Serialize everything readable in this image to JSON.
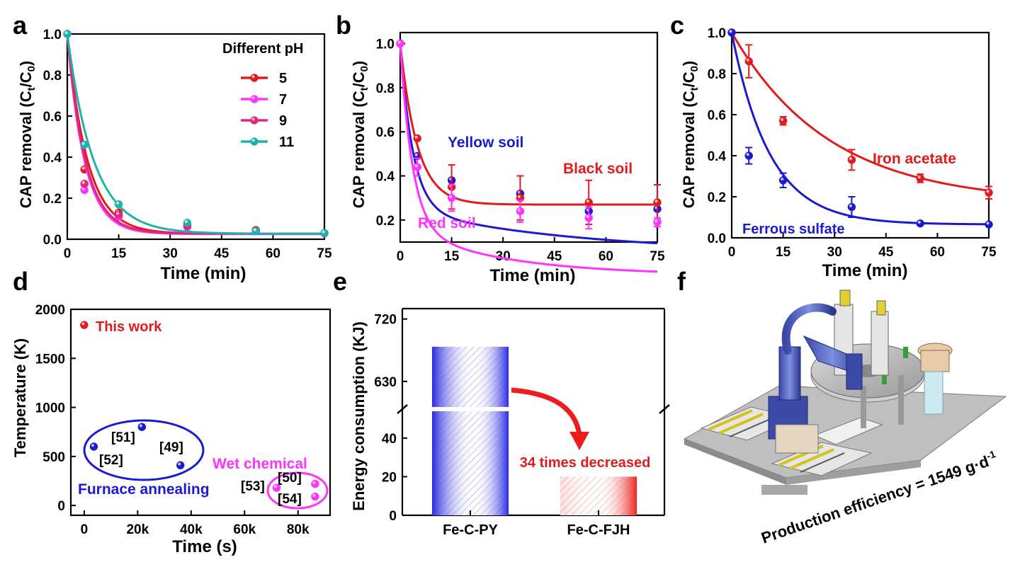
{
  "chart_data": [
    {
      "panel": "a",
      "type": "line",
      "xlabel": "Time (min)",
      "ylabel_main": "CAP removal (C",
      "ylabel_t": "t",
      "ylabel_mid": "/C",
      "ylabel_0": "0",
      "ylabel_end": ")",
      "xlim": [
        0,
        75
      ],
      "ylim": [
        0,
        1.0
      ],
      "xticks": [
        "0",
        "15",
        "30",
        "45",
        "60",
        "75"
      ],
      "xtick_values": [
        0,
        15,
        30,
        45,
        60,
        75
      ],
      "yticks": [
        "0.0",
        "0.2",
        "0.4",
        "0.6",
        "0.8",
        "1.0"
      ],
      "ytick_values": [
        0,
        0.2,
        0.4,
        0.6,
        0.8,
        1.0
      ],
      "legend_title": "Different pH",
      "x": [
        0,
        5,
        15,
        35,
        55,
        75
      ],
      "series": [
        {
          "name": "5",
          "color": "#e31a1c",
          "values": [
            1.0,
            0.34,
            0.13,
            0.07,
            0.045,
            0.03
          ],
          "k": 0.17
        },
        {
          "name": "7",
          "color": "#ff33ff",
          "values": [
            1.0,
            0.24,
            0.11,
            0.06,
            0.04,
            0.028
          ],
          "k": 0.2
        },
        {
          "name": "9",
          "color": "#e0287a",
          "values": [
            1.0,
            0.27,
            0.12,
            0.065,
            0.04,
            0.03
          ],
          "k": 0.19
        },
        {
          "name": "11",
          "color": "#20b2aa",
          "values": [
            1.0,
            0.46,
            0.17,
            0.08,
            0.04,
            0.03
          ],
          "k": 0.13
        }
      ]
    },
    {
      "panel": "b",
      "type": "line",
      "xlabel": "Time (min)",
      "ylabel_main": "CAP removal (C",
      "ylabel_t": "t",
      "ylabel_mid": "/C",
      "ylabel_0": "0",
      "ylabel_end": ")",
      "xlim": [
        0,
        75
      ],
      "ylim": [
        0.1,
        1.05
      ],
      "xticks": [
        "0",
        "15",
        "30",
        "45",
        "60",
        "75"
      ],
      "xtick_values": [
        0,
        15,
        30,
        45,
        60,
        75
      ],
      "yticks": [
        "0.2",
        "0.4",
        "0.6",
        "0.8",
        "1.0"
      ],
      "ytick_values": [
        0.2,
        0.4,
        0.6,
        0.8,
        1.0
      ],
      "x": [
        0,
        5,
        15,
        35,
        55,
        75
      ],
      "series": [
        {
          "name": "Yellow soil",
          "color": "#1a1ad0",
          "values": [
            1.0,
            0.49,
            0.38,
            0.32,
            0.24,
            0.25
          ],
          "errors": [
            0,
            0,
            0,
            0,
            0,
            0
          ],
          "fit": [
            0.25,
            0.75,
            0.27,
            0.2,
            0.02
          ]
        },
        {
          "name": "Black soil",
          "color": "#e31a1c",
          "values": [
            1.0,
            0.57,
            0.35,
            0.3,
            0.28,
            0.28
          ],
          "errors": [
            0,
            0,
            0.1,
            0.1,
            0.1,
            0.08
          ],
          "fit": [
            0.27,
            0.73,
            0.2,
            0.0,
            0.0
          ]
        },
        {
          "name": "Red soil",
          "color": "#ff33ff",
          "values": [
            1.0,
            0.44,
            0.3,
            0.24,
            0.21,
            0.19
          ],
          "errors": [
            0,
            0.04,
            0.06,
            0.05,
            0.05,
            0.02
          ],
          "fit": [
            0.17,
            0.83,
            0.28,
            0.22,
            0.035
          ]
        }
      ]
    },
    {
      "panel": "c",
      "type": "line",
      "xlabel": "Time (min)",
      "ylabel_main": "CAP removal (C",
      "ylabel_t": "t",
      "ylabel_mid": "/C",
      "ylabel_0": "0",
      "ylabel_end": ")",
      "xlim": [
        0,
        75
      ],
      "ylim": [
        0,
        1.0
      ],
      "xticks": [
        "0",
        "15",
        "30",
        "45",
        "60",
        "75"
      ],
      "xtick_values": [
        0,
        15,
        30,
        45,
        60,
        75
      ],
      "yticks": [
        "0.0",
        "0.2",
        "0.4",
        "0.6",
        "0.8",
        "1.0"
      ],
      "ytick_values": [
        0,
        0.2,
        0.4,
        0.6,
        0.8,
        1.0
      ],
      "x": [
        0,
        5,
        15,
        35,
        55,
        75
      ],
      "series": [
        {
          "name": "Iron acetate",
          "color": "#e31a1c",
          "values": [
            1.0,
            0.86,
            0.57,
            0.38,
            0.29,
            0.22
          ],
          "errors": [
            0,
            0.08,
            0.02,
            0.05,
            0.02,
            0.03
          ],
          "fit": [
            0.17,
            0.83,
            0.035
          ]
        },
        {
          "name": "Ferrous sulfate",
          "color": "#1a1ad0",
          "values": [
            1.0,
            0.4,
            0.28,
            0.15,
            0.07,
            0.065
          ],
          "errors": [
            0,
            0.04,
            0.035,
            0.05,
            0.0,
            0.0
          ],
          "fit": [
            0.065,
            0.935,
            0.09
          ]
        }
      ]
    },
    {
      "panel": "d",
      "type": "scatter",
      "xlabel": "Time (s)",
      "ylabel": "Temperature (K)",
      "xlim": [
        -5000,
        92000
      ],
      "ylim": [
        -100,
        2000
      ],
      "xticks": [
        "0",
        "20k",
        "40k",
        "60k",
        "80k"
      ],
      "xtick_values": [
        0,
        20000,
        40000,
        60000,
        80000
      ],
      "yticks": [
        "0",
        "500",
        "1000",
        "1500",
        "2000"
      ],
      "ytick_values": [
        0,
        500,
        1000,
        1500,
        2000
      ],
      "this_work": {
        "label": "This work",
        "x": 0,
        "y": 1840
      },
      "groups": [
        {
          "name": "Furnace annealing",
          "color": "#1a1ad0",
          "points": [
            {
              "ref": "[52]",
              "x": 3600,
              "y": 600
            },
            {
              "ref": "[51]",
              "x": 21600,
              "y": 800
            },
            {
              "ref": "[49]",
              "x": 36000,
              "y": 410
            }
          ]
        },
        {
          "name": "Wet chemical",
          "color": "#ff33ff",
          "points": [
            {
              "ref": "[53]",
              "x": 72000,
              "y": 180
            },
            {
              "ref": "[50]",
              "x": 86400,
              "y": 220
            },
            {
              "ref": "[54]",
              "x": 86400,
              "y": 90
            }
          ]
        }
      ]
    },
    {
      "panel": "e",
      "type": "bar",
      "ylabel": "Energy consumption (KJ)",
      "categories": [
        "Fe-C-PY",
        "Fe-C-FJH"
      ],
      "values": [
        680,
        20
      ],
      "yticks_lower": [
        "0",
        "20",
        "40"
      ],
      "ytick_lower_values": [
        0,
        20,
        40
      ],
      "yticks_upper": [
        "630",
        "720"
      ],
      "ytick_upper_values": [
        630,
        720
      ],
      "annotation": "34 times decreased",
      "colors": [
        "#2a2ae0",
        "#ee2020"
      ]
    }
  ],
  "panel_labels": [
    "a",
    "b",
    "c",
    "d",
    "e",
    "f"
  ],
  "panel_f": {
    "efficiency_label": "Production efficiency = 1549 g·d",
    "efficiency_exp": "-1"
  }
}
